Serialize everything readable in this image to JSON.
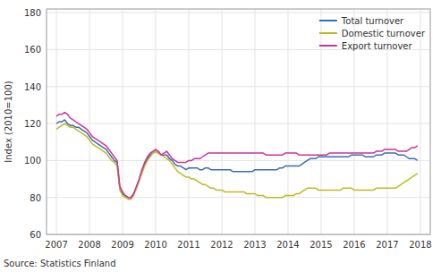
{
  "chart_data": {
    "type": "line",
    "y_label": "Index (2010=100)",
    "source": "Source: Statistics Finland",
    "xlim": [
      2006.7,
      2018.3
    ],
    "ylim": [
      60,
      182
    ],
    "xticks": [
      2007,
      2008,
      2009,
      2010,
      2011,
      2012,
      2013,
      2014,
      2015,
      2016,
      2017,
      2018
    ],
    "yticks": [
      60,
      80,
      100,
      120,
      140,
      160,
      180
    ],
    "grid": true,
    "legend": "upper right",
    "x": [
      2007,
      2007.0833,
      2007.1667,
      2007.25,
      2007.3333,
      2007.4167,
      2007.5,
      2007.5833,
      2007.6667,
      2007.75,
      2007.8333,
      2007.9167,
      2008,
      2008.0833,
      2008.1667,
      2008.25,
      2008.3333,
      2008.4167,
      2008.5,
      2008.5833,
      2008.6667,
      2008.75,
      2008.8333,
      2008.9167,
      2009,
      2009.0833,
      2009.1667,
      2009.25,
      2009.3333,
      2009.4167,
      2009.5,
      2009.5833,
      2009.6667,
      2009.75,
      2009.8333,
      2009.9167,
      2010,
      2010.0833,
      2010.1667,
      2010.25,
      2010.3333,
      2010.4167,
      2010.5,
      2010.5833,
      2010.6667,
      2010.75,
      2010.8333,
      2010.9167,
      2011,
      2011.0833,
      2011.1667,
      2011.25,
      2011.3333,
      2011.4167,
      2011.5,
      2011.5833,
      2011.6667,
      2011.75,
      2011.8333,
      2011.9167,
      2012,
      2012.0833,
      2012.1667,
      2012.25,
      2012.3333,
      2012.4167,
      2012.5,
      2012.5833,
      2012.6667,
      2012.75,
      2012.8333,
      2012.9167,
      2013,
      2013.0833,
      2013.1667,
      2013.25,
      2013.3333,
      2013.4167,
      2013.5,
      2013.5833,
      2013.6667,
      2013.75,
      2013.8333,
      2013.9167,
      2014,
      2014.0833,
      2014.1667,
      2014.25,
      2014.3333,
      2014.4167,
      2014.5,
      2014.5833,
      2014.6667,
      2014.75,
      2014.8333,
      2014.9167,
      2015,
      2015.0833,
      2015.1667,
      2015.25,
      2015.3333,
      2015.4167,
      2015.5,
      2015.5833,
      2015.6667,
      2015.75,
      2015.8333,
      2015.9167,
      2016,
      2016.0833,
      2016.1667,
      2016.25,
      2016.3333,
      2016.4167,
      2016.5,
      2016.5833,
      2016.6667,
      2016.75,
      2016.8333,
      2016.9167,
      2017,
      2017.0833,
      2017.1667,
      2017.25,
      2017.3333,
      2017.4167,
      2017.5,
      2017.5833,
      2017.6667,
      2017.75,
      2017.8333,
      2017.9167
    ],
    "series": [
      {
        "name": "Total turnover",
        "color": "#3A6CB5",
        "values": [
          120,
          121,
          121,
          122,
          120,
          119,
          119,
          118,
          118,
          117,
          116,
          115,
          113,
          111,
          110,
          109,
          108,
          107,
          106,
          104,
          102,
          100,
          99,
          85,
          82,
          81,
          80,
          80,
          82,
          85,
          89,
          94,
          98,
          101,
          103,
          104,
          105,
          104,
          103,
          103,
          103,
          101,
          100,
          98,
          97,
          97,
          96,
          95,
          96,
          96,
          96,
          96,
          95,
          95,
          96,
          96,
          95,
          95,
          95,
          95,
          95,
          95,
          95,
          95,
          94,
          94,
          94,
          94,
          94,
          94,
          94,
          94,
          95,
          95,
          95,
          95,
          95,
          95,
          95,
          95,
          95,
          96,
          96,
          97,
          97,
          97,
          97,
          97,
          97,
          98,
          99,
          100,
          101,
          101,
          101,
          102,
          102,
          102,
          102,
          102,
          102,
          102,
          102,
          102,
          102,
          102,
          102,
          103,
          103,
          103,
          103,
          103,
          102,
          102,
          102,
          102,
          103,
          103,
          103,
          104,
          104,
          104,
          104,
          104,
          103,
          103,
          103,
          102,
          101,
          101,
          101,
          100
        ]
      },
      {
        "name": "Domestic turnover",
        "color": "#BBBB22",
        "values": [
          117,
          118,
          119,
          120,
          119,
          118,
          118,
          117,
          116,
          115,
          114,
          113,
          111,
          109,
          108,
          107,
          106,
          105,
          104,
          102,
          100,
          99,
          97,
          84,
          81,
          80,
          79,
          79,
          81,
          85,
          89,
          93,
          97,
          100,
          102,
          104,
          105,
          104,
          103,
          102,
          101,
          100,
          98,
          96,
          94,
          93,
          92,
          91,
          91,
          90,
          90,
          89,
          88,
          87,
          87,
          86,
          85,
          85,
          84,
          84,
          84,
          83,
          83,
          83,
          83,
          83,
          83,
          83,
          83,
          82,
          82,
          82,
          82,
          81,
          81,
          81,
          80,
          80,
          80,
          80,
          80,
          80,
          80,
          81,
          81,
          81,
          81,
          82,
          82,
          83,
          84,
          85,
          85,
          85,
          85,
          84,
          84,
          84,
          84,
          84,
          84,
          84,
          84,
          84,
          85,
          85,
          85,
          85,
          84,
          84,
          84,
          84,
          84,
          84,
          84,
          84,
          85,
          85,
          85,
          85,
          85,
          85,
          85,
          85,
          86,
          87,
          88,
          89,
          90,
          91,
          92,
          93
        ]
      },
      {
        "name": "Export turnover",
        "color": "#CC3399",
        "values": [
          124,
          125,
          125,
          126,
          125,
          123,
          122,
          121,
          120,
          119,
          118,
          117,
          115,
          113,
          112,
          111,
          110,
          109,
          108,
          106,
          104,
          102,
          100,
          86,
          83,
          81,
          80,
          80,
          82,
          86,
          90,
          95,
          99,
          102,
          104,
          105,
          106,
          105,
          103,
          104,
          105,
          103,
          101,
          100,
          99,
          99,
          99,
          99,
          100,
          100,
          101,
          101,
          101,
          102,
          103,
          104,
          104,
          104,
          104,
          104,
          104,
          104,
          104,
          104,
          104,
          104,
          104,
          104,
          104,
          104,
          104,
          104,
          104,
          104,
          104,
          104,
          103,
          103,
          103,
          103,
          103,
          103,
          103,
          104,
          104,
          104,
          104,
          104,
          103,
          103,
          103,
          103,
          103,
          103,
          103,
          103,
          103,
          103,
          103,
          104,
          104,
          104,
          104,
          104,
          104,
          104,
          104,
          104,
          104,
          104,
          104,
          104,
          104,
          104,
          104,
          104,
          105,
          105,
          105,
          106,
          106,
          106,
          106,
          106,
          105,
          105,
          105,
          105,
          106,
          107,
          107,
          108
        ]
      }
    ]
  }
}
